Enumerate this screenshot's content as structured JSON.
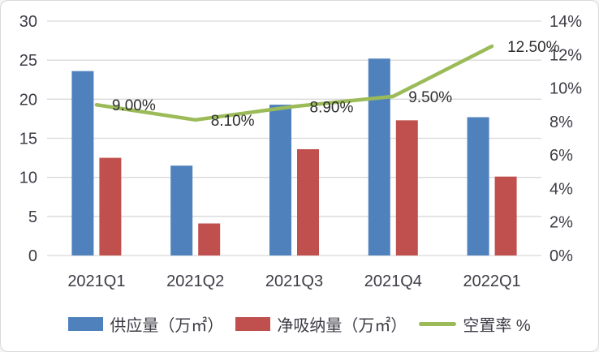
{
  "chart_data": {
    "type": "combo",
    "title": "",
    "categories": [
      "2021Q1",
      "2021Q2",
      "2021Q3",
      "2021Q4",
      "2022Q1"
    ],
    "series": [
      {
        "name": "供应量（万㎡）",
        "type": "bar",
        "axis": "left",
        "color": "#4F81BD",
        "values": [
          23.6,
          11.5,
          19.3,
          25.2,
          17.7
        ]
      },
      {
        "name": "净吸纳量（万㎡）",
        "type": "bar",
        "axis": "left",
        "color": "#C0504D",
        "values": [
          12.5,
          4.1,
          13.6,
          17.3,
          10.1
        ]
      },
      {
        "name": "空置率 %",
        "type": "line",
        "axis": "right",
        "color": "#9BBB59",
        "values": [
          9.0,
          8.1,
          8.9,
          9.5,
          12.5
        ],
        "point_labels": [
          "9.00%",
          "8.10%",
          "8.90%",
          "9.50%",
          "12.50%"
        ]
      }
    ],
    "left_axis": {
      "min": 0,
      "max": 30,
      "step": 5,
      "tick_labels": [
        "0",
        "5",
        "10",
        "15",
        "20",
        "25",
        "30"
      ]
    },
    "right_axis": {
      "min": 0,
      "max": 14,
      "step": 2,
      "tick_labels": [
        "0%",
        "2%",
        "4%",
        "6%",
        "8%",
        "10%",
        "12%",
        "14%"
      ]
    },
    "grid": true,
    "legend_position": "bottom",
    "styles": {
      "grid_color": "#d9d9d9",
      "axis_text_color": "#3c3c46",
      "data_label_color": "#2e2e2e",
      "background": "#ffffff",
      "border_color": "#d9d9d9"
    }
  }
}
